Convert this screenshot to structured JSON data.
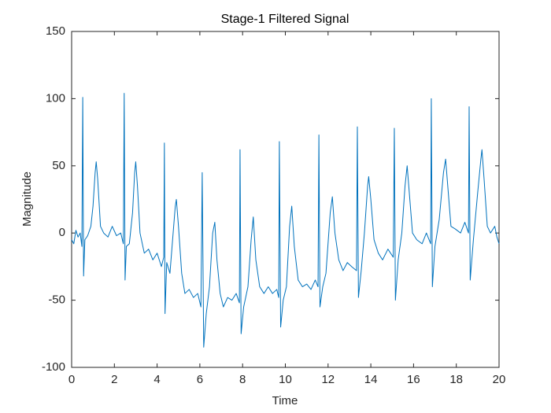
{
  "chart_data": {
    "type": "line",
    "title": "Stage-1 Filtered Signal",
    "xlabel": "Time",
    "ylabel": "Magnitude",
    "xlim": [
      0,
      20
    ],
    "ylim": [
      -100,
      150
    ],
    "xticks": [
      0,
      2,
      4,
      6,
      8,
      10,
      12,
      14,
      16,
      18,
      20
    ],
    "yticks": [
      -100,
      -50,
      0,
      50,
      100,
      150
    ],
    "grid": false,
    "series": [
      {
        "color": "#0072bd",
        "x": [
          0,
          0.1,
          0.2,
          0.3,
          0.4,
          0.48,
          0.52,
          0.56,
          0.62,
          0.75,
          0.9,
          1.0,
          1.1,
          1.15,
          1.22,
          1.35,
          1.5,
          1.7,
          1.9,
          2.1,
          2.3,
          2.42,
          2.46,
          2.5,
          2.56,
          2.7,
          2.85,
          2.95,
          3.0,
          3.08,
          3.2,
          3.4,
          3.6,
          3.8,
          4.0,
          4.2,
          4.31,
          4.34,
          4.37,
          4.45,
          4.6,
          4.75,
          4.85,
          4.9,
          5.0,
          5.15,
          5.3,
          5.5,
          5.7,
          5.9,
          6.05,
          6.11,
          6.18,
          6.3,
          6.45,
          6.6,
          6.7,
          6.8,
          6.95,
          7.1,
          7.3,
          7.5,
          7.7,
          7.85,
          7.88,
          7.93,
          8.05,
          8.25,
          8.4,
          8.5,
          8.62,
          8.8,
          9.0,
          9.2,
          9.4,
          9.6,
          9.69,
          9.72,
          9.78,
          9.9,
          10.05,
          10.2,
          10.3,
          10.42,
          10.6,
          10.8,
          11.0,
          11.2,
          11.4,
          11.53,
          11.57,
          11.62,
          11.75,
          11.9,
          12.1,
          12.2,
          12.32,
          12.5,
          12.7,
          12.9,
          13.1,
          13.33,
          13.37,
          13.42,
          13.55,
          13.7,
          13.85,
          13.9,
          14.0,
          14.15,
          14.35,
          14.55,
          14.8,
          15.05,
          15.1,
          15.15,
          15.28,
          15.45,
          15.6,
          15.7,
          15.8,
          15.95,
          16.15,
          16.4,
          16.6,
          16.8,
          16.83,
          16.88,
          17.0,
          17.2,
          17.4,
          17.5,
          17.6,
          17.75,
          17.95,
          18.2,
          18.4,
          18.57,
          18.6,
          18.65,
          18.8,
          19.0,
          19.15,
          19.2,
          19.3,
          19.45,
          19.6,
          19.8,
          19.9,
          20.0
        ],
        "values": [
          -5,
          -8,
          2,
          -3,
          0,
          -10,
          101,
          -32,
          -5,
          -2,
          5,
          20,
          45,
          53,
          40,
          5,
          0,
          -3,
          5,
          -2,
          0,
          -8,
          104,
          -35,
          -10,
          -8,
          15,
          45,
          53,
          35,
          0,
          -15,
          -12,
          -20,
          -15,
          -25,
          -18,
          67,
          -60,
          -22,
          -30,
          0,
          20,
          25,
          5,
          -30,
          -45,
          -42,
          -48,
          -45,
          -55,
          45,
          -85,
          -60,
          -40,
          0,
          8,
          -20,
          -45,
          -55,
          -48,
          -50,
          -45,
          -52,
          62,
          -75,
          -55,
          -40,
          -5,
          12,
          -20,
          -40,
          -45,
          -40,
          -45,
          -42,
          -48,
          68,
          -70,
          -50,
          -40,
          5,
          20,
          -10,
          -35,
          -40,
          -38,
          -42,
          -35,
          -40,
          73,
          -55,
          -40,
          -30,
          15,
          27,
          0,
          -20,
          -28,
          -22,
          -25,
          -28,
          79,
          -48,
          -28,
          0,
          35,
          42,
          25,
          -5,
          -15,
          -20,
          -12,
          -18,
          78,
          -50,
          -20,
          0,
          35,
          50,
          30,
          0,
          -5,
          -8,
          0,
          -8,
          100,
          -40,
          -10,
          10,
          45,
          55,
          35,
          5,
          3,
          0,
          8,
          0,
          94,
          -35,
          -5,
          30,
          55,
          62,
          40,
          5,
          0,
          5,
          -3,
          -8
        ]
      }
    ]
  }
}
